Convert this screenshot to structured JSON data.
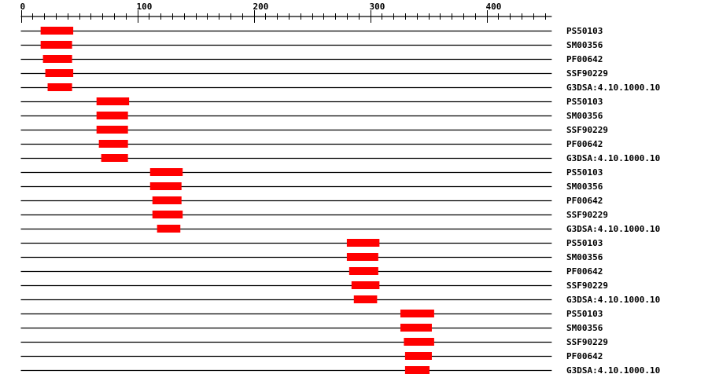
{
  "axis": {
    "min": 0,
    "max": 456,
    "major_step": 100,
    "minor_step": 10,
    "tick_labels": [
      "0",
      "100",
      "200",
      "300",
      "400"
    ]
  },
  "colors": {
    "domain": "#ff0000",
    "line": "#000000"
  },
  "rows": [
    {
      "label": "PS50103",
      "start": 17,
      "end": 45
    },
    {
      "label": "SM00356",
      "start": 17,
      "end": 44
    },
    {
      "label": "PF00642",
      "start": 19,
      "end": 44
    },
    {
      "label": "SSF90229",
      "start": 21,
      "end": 45
    },
    {
      "label": "G3DSA:4.10.1000.10",
      "start": 23,
      "end": 44
    },
    {
      "label": "PS50103",
      "start": 65,
      "end": 93
    },
    {
      "label": "SM00356",
      "start": 65,
      "end": 92
    },
    {
      "label": "SSF90229",
      "start": 65,
      "end": 92
    },
    {
      "label": "PF00642",
      "start": 67,
      "end": 92
    },
    {
      "label": "G3DSA:4.10.1000.10",
      "start": 69,
      "end": 92
    },
    {
      "label": "PS50103",
      "start": 111,
      "end": 139
    },
    {
      "label": "SM00356",
      "start": 111,
      "end": 138
    },
    {
      "label": "PF00642",
      "start": 113,
      "end": 138
    },
    {
      "label": "SSF90229",
      "start": 113,
      "end": 139
    },
    {
      "label": "G3DSA:4.10.1000.10",
      "start": 117,
      "end": 137
    },
    {
      "label": "PS50103",
      "start": 280,
      "end": 308
    },
    {
      "label": "SM00356",
      "start": 280,
      "end": 307
    },
    {
      "label": "PF00642",
      "start": 282,
      "end": 307
    },
    {
      "label": "SSF90229",
      "start": 284,
      "end": 308
    },
    {
      "label": "G3DSA:4.10.1000.10",
      "start": 286,
      "end": 306
    },
    {
      "label": "PS50103",
      "start": 326,
      "end": 355
    },
    {
      "label": "SM00356",
      "start": 326,
      "end": 353
    },
    {
      "label": "SSF90229",
      "start": 329,
      "end": 355
    },
    {
      "label": "PF00642",
      "start": 330,
      "end": 353
    },
    {
      "label": "G3DSA:4.10.1000.10",
      "start": 330,
      "end": 351
    }
  ]
}
